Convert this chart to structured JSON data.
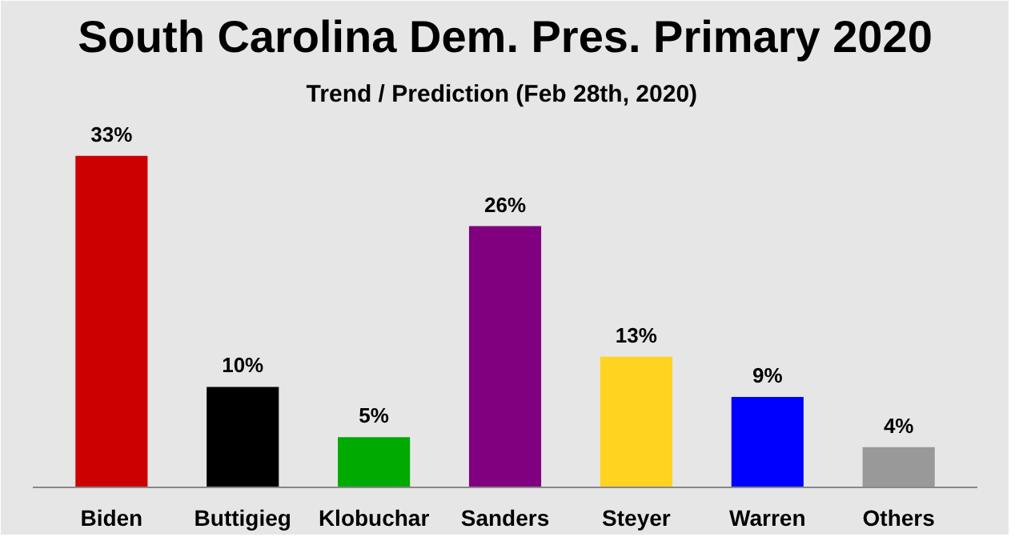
{
  "chart_data": {
    "type": "bar",
    "title": "South Carolina Dem. Pres. Primary 2020",
    "subtitle": "Trend / Prediction  (Feb 28th, 2020)",
    "categories": [
      "Biden",
      "Buttigieg",
      "Klobuchar",
      "Sanders",
      "Steyer",
      "Warren",
      "Others"
    ],
    "values": [
      33,
      10,
      5,
      26,
      13,
      9,
      4
    ],
    "colors": [
      "#cc0000",
      "#000000",
      "#00aa00",
      "#800080",
      "#ffd320",
      "#0000ff",
      "#999999"
    ],
    "value_labels": [
      "33%",
      "10%",
      "5%",
      "26%",
      "13%",
      "9%",
      "4%"
    ]
  }
}
